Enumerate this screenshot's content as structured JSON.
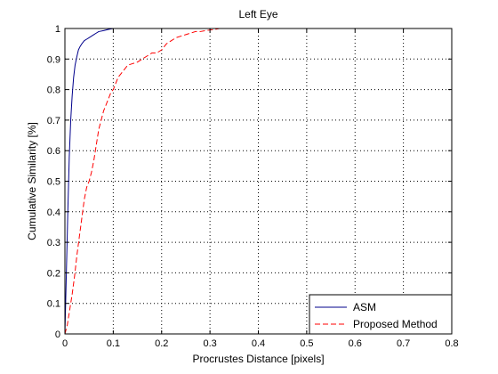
{
  "chart_data": {
    "type": "line",
    "title": "Left Eye",
    "xlabel": "Procrustes Distance [pixels]",
    "ylabel": "Cumulative Similarity [%]",
    "xlim": [
      0,
      0.8
    ],
    "ylim": [
      0,
      1
    ],
    "xticks": [
      0,
      0.1,
      0.2,
      0.3,
      0.4,
      0.5,
      0.6,
      0.7,
      0.8
    ],
    "xtick_labels": [
      "0",
      "0.1",
      "0.2",
      "0.3",
      "0.4",
      "0.5",
      "0.6",
      "0.7",
      "0.8"
    ],
    "yticks": [
      0,
      0.1,
      0.2,
      0.3,
      0.4,
      0.5,
      0.6,
      0.7,
      0.8,
      0.9,
      1
    ],
    "ytick_labels": [
      "0",
      "0.1",
      "0.2",
      "0.3",
      "0.4",
      "0.5",
      "0.6",
      "0.7",
      "0.8",
      "0.9",
      "1"
    ],
    "grid": true,
    "legend_position": "bottom-right",
    "series": [
      {
        "name": "ASM",
        "color": "#00008b",
        "style": "solid",
        "x": [
          0.0,
          0.003,
          0.006,
          0.009,
          0.012,
          0.015,
          0.018,
          0.021,
          0.025,
          0.028,
          0.031,
          0.035,
          0.04,
          0.045,
          0.05,
          0.055,
          0.06,
          0.065,
          0.07,
          0.08,
          0.09,
          0.1
        ],
        "y": [
          0.0,
          0.2,
          0.4,
          0.58,
          0.7,
          0.78,
          0.84,
          0.88,
          0.91,
          0.93,
          0.94,
          0.95,
          0.96,
          0.965,
          0.97,
          0.975,
          0.98,
          0.985,
          0.99,
          0.993,
          0.997,
          1.0
        ]
      },
      {
        "name": "Proposed Method",
        "color": "#ff0000",
        "style": "dashed",
        "x": [
          0.0,
          0.005,
          0.01,
          0.015,
          0.02,
          0.025,
          0.03,
          0.035,
          0.04,
          0.045,
          0.05,
          0.055,
          0.06,
          0.065,
          0.07,
          0.075,
          0.08,
          0.085,
          0.09,
          0.095,
          0.1,
          0.11,
          0.12,
          0.13,
          0.14,
          0.15,
          0.16,
          0.17,
          0.18,
          0.19,
          0.2,
          0.21,
          0.22,
          0.23,
          0.24,
          0.25,
          0.26,
          0.27,
          0.28,
          0.29,
          0.3,
          0.31,
          0.32,
          0.33
        ],
        "y": [
          0.0,
          0.03,
          0.08,
          0.13,
          0.19,
          0.26,
          0.32,
          0.38,
          0.44,
          0.48,
          0.5,
          0.53,
          0.57,
          0.62,
          0.67,
          0.7,
          0.73,
          0.75,
          0.77,
          0.79,
          0.8,
          0.84,
          0.86,
          0.88,
          0.885,
          0.89,
          0.9,
          0.91,
          0.92,
          0.92,
          0.93,
          0.95,
          0.96,
          0.97,
          0.975,
          0.98,
          0.985,
          0.99,
          0.99,
          0.993,
          0.995,
          0.997,
          1.0,
          1.0
        ]
      }
    ]
  }
}
